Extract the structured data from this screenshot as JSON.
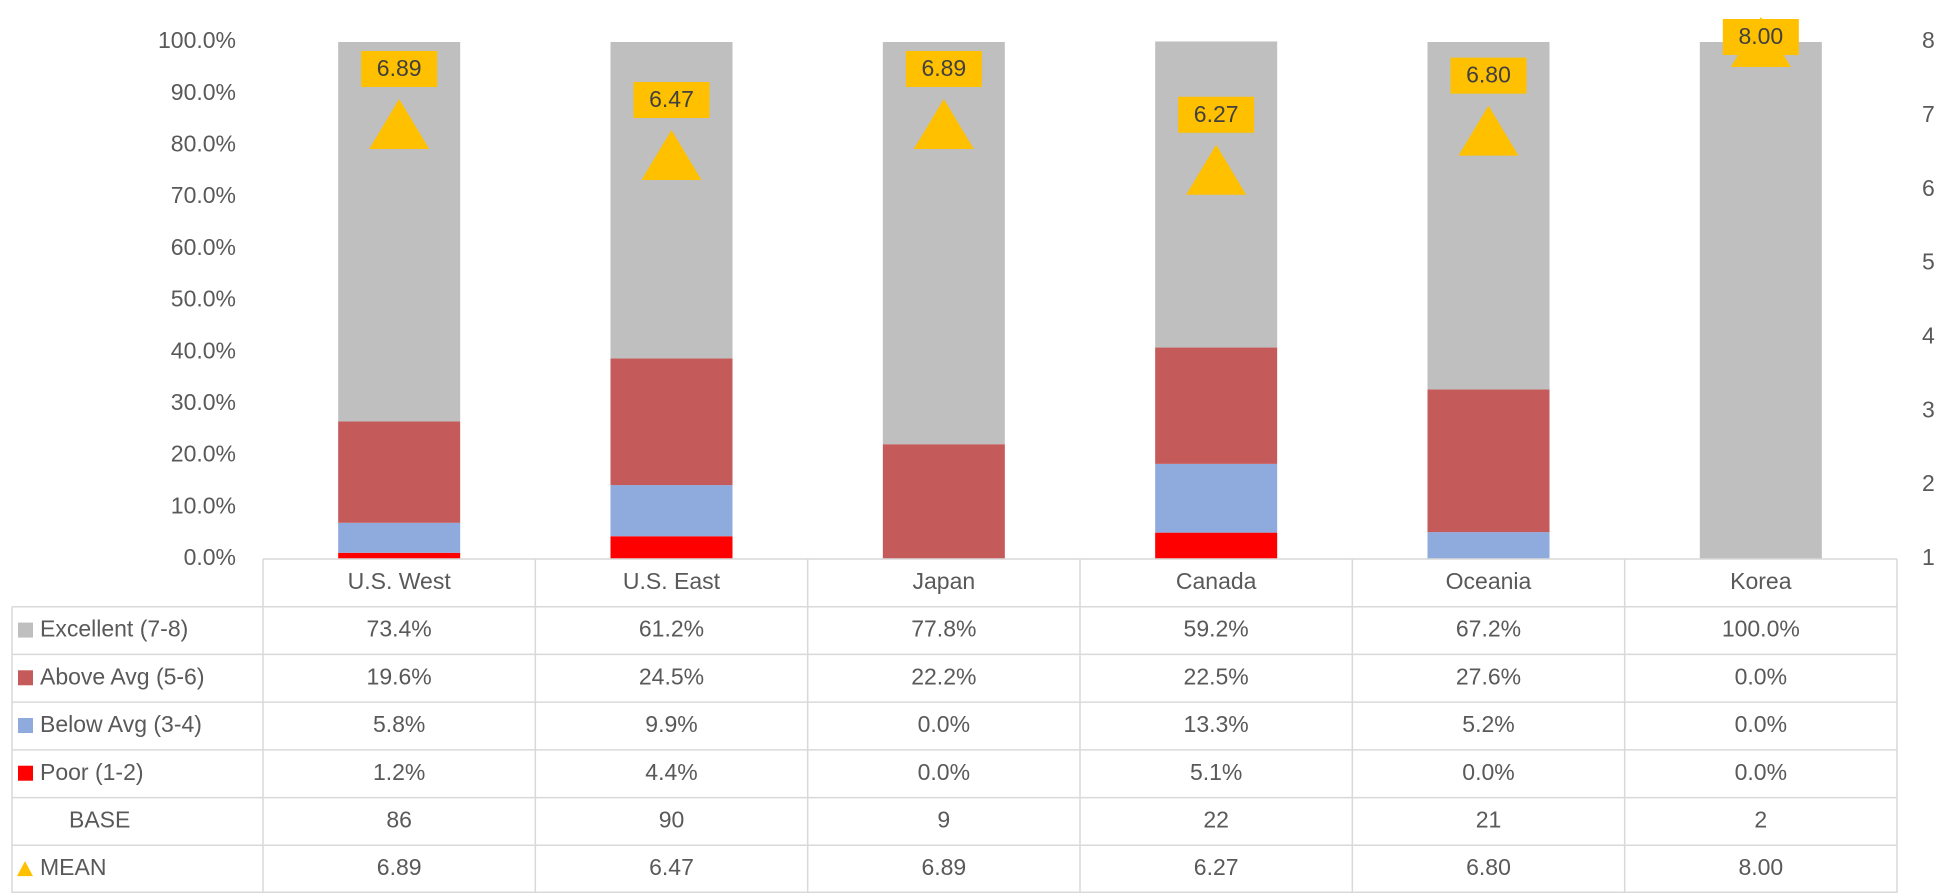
{
  "chart_data": {
    "type": "bar",
    "stacked": true,
    "categories": [
      "U.S. West",
      "U.S. East",
      "Japan",
      "Canada",
      "Oceania",
      "Korea"
    ],
    "series": [
      {
        "name": "Excellent (7-8)",
        "color": "#bfbfbf",
        "values": [
          73.4,
          61.2,
          77.8,
          59.2,
          67.2,
          100.0
        ],
        "value_labels": [
          "73.4%",
          "61.2%",
          "77.8%",
          "59.2%",
          "67.2%",
          "100.0%"
        ]
      },
      {
        "name": "Above Avg (5-6)",
        "color": "#c55a5a",
        "values": [
          19.6,
          24.5,
          22.2,
          22.5,
          27.6,
          0.0
        ],
        "value_labels": [
          "19.6%",
          "24.5%",
          "22.2%",
          "22.5%",
          "27.6%",
          "0.0%"
        ]
      },
      {
        "name": "Below Avg (3-4)",
        "color": "#8faadc",
        "values": [
          5.8,
          9.9,
          0.0,
          13.3,
          5.2,
          0.0
        ],
        "value_labels": [
          "5.8%",
          "9.9%",
          "0.0%",
          "13.3%",
          "5.2%",
          "0.0%"
        ]
      },
      {
        "name": "Poor (1-2)",
        "color": "#ff0000",
        "values": [
          1.2,
          4.4,
          0.0,
          5.1,
          0.0,
          0.0
        ],
        "value_labels": [
          "1.2%",
          "4.4%",
          "0.0%",
          "5.1%",
          "0.0%",
          "0.0%"
        ]
      }
    ],
    "base": {
      "name": "BASE",
      "values": [
        86,
        90,
        9,
        22,
        21,
        2
      ]
    },
    "mean": {
      "name": "MEAN",
      "color": "#ffc000",
      "axis": "y2",
      "marker": "triangle",
      "values": [
        6.89,
        6.47,
        6.89,
        6.27,
        6.8,
        8.0
      ],
      "value_labels": [
        "6.89",
        "6.47",
        "6.89",
        "6.27",
        "6.80",
        "8.00"
      ]
    },
    "ylim": [
      0,
      100
    ],
    "yticks": [
      {
        "value": 0,
        "label": "0.0%"
      },
      {
        "value": 10,
        "label": "10.0%"
      },
      {
        "value": 20,
        "label": "20.0%"
      },
      {
        "value": 30,
        "label": "30.0%"
      },
      {
        "value": 40,
        "label": "40.0%"
      },
      {
        "value": 50,
        "label": "50.0%"
      },
      {
        "value": 60,
        "label": "60.0%"
      },
      {
        "value": 70,
        "label": "70.0%"
      },
      {
        "value": 80,
        "label": "80.0%"
      },
      {
        "value": 90,
        "label": "90.0%"
      },
      {
        "value": 100,
        "label": "100.0%"
      }
    ],
    "y2lim": [
      1,
      8
    ],
    "y2ticks": [
      1,
      2,
      3,
      4,
      5,
      6,
      7,
      8
    ],
    "grid": false
  }
}
